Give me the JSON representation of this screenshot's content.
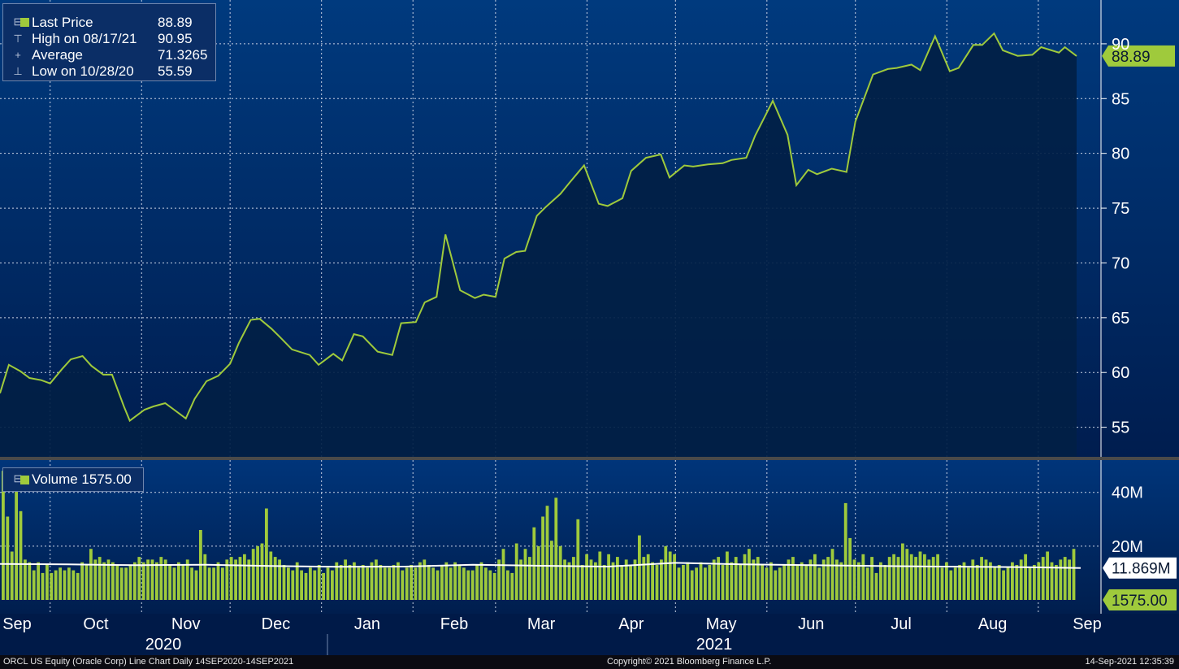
{
  "legend": {
    "last_price_label": "Last Price",
    "last_price_value": "88.89",
    "high_label": "High on 08/17/21",
    "high_value": "90.95",
    "average_label": "Average",
    "average_value": "71.3265",
    "low_label": "Low on 10/28/20",
    "low_value": "55.59"
  },
  "volume_legend": {
    "label": "Volume 1575.00"
  },
  "footer": {
    "left": "ORCL US Equity (Oracle Corp) Line Chart  Daily 14SEP2020-14SEP2021",
    "center": "Copyright© 2021 Bloomberg Finance L.P.",
    "right": "14-Sep-2021 12:35:39"
  },
  "colors": {
    "background": "#002a66",
    "line": "#9fca3c",
    "area": "#011f45",
    "volume_bar": "#9fca3c",
    "moving_average": "#ffffff"
  },
  "chart_data": [
    {
      "type": "line",
      "title": "ORCL US Equity (Oracle Corp) Line Chart",
      "y_ticks": [
        55,
        60,
        65,
        70,
        75,
        80,
        85,
        90
      ],
      "ylim": [
        52.3,
        94.0
      ],
      "last_label": "88.89",
      "x_months": [
        "Sep",
        "Oct",
        "Nov",
        "Dec",
        "Jan",
        "Feb",
        "Mar",
        "Apr",
        "May",
        "Jun",
        "Jul",
        "Aug",
        "Sep"
      ],
      "x_years": [
        "2020",
        "2021"
      ],
      "series": [
        {
          "name": "Last Price",
          "x": [
            "2020-09-14",
            "2020-09-17",
            "2020-09-21",
            "2020-09-24",
            "2020-09-28",
            "2020-10-01",
            "2020-10-05",
            "2020-10-08",
            "2020-10-12",
            "2020-10-15",
            "2020-10-19",
            "2020-10-22",
            "2020-10-26",
            "2020-10-28",
            "2020-11-02",
            "2020-11-05",
            "2020-11-09",
            "2020-11-12",
            "2020-11-16",
            "2020-11-19",
            "2020-11-23",
            "2020-11-27",
            "2020-12-01",
            "2020-12-04",
            "2020-12-08",
            "2020-12-11",
            "2020-12-15",
            "2020-12-18",
            "2020-12-22",
            "2020-12-28",
            "2020-12-31",
            "2021-01-05",
            "2021-01-08",
            "2021-01-12",
            "2021-01-15",
            "2021-01-20",
            "2021-01-25",
            "2021-01-28",
            "2021-02-02",
            "2021-02-05",
            "2021-02-09",
            "2021-02-12",
            "2021-02-17",
            "2021-02-22",
            "2021-02-25",
            "2021-03-01",
            "2021-03-04",
            "2021-03-08",
            "2021-03-11",
            "2021-03-15",
            "2021-03-18",
            "2021-03-23",
            "2021-03-26",
            "2021-03-31",
            "2021-04-05",
            "2021-04-08",
            "2021-04-13",
            "2021-04-16",
            "2021-04-21",
            "2021-04-26",
            "2021-04-29",
            "2021-05-04",
            "2021-05-07",
            "2021-05-12",
            "2021-05-17",
            "2021-05-20",
            "2021-05-25",
            "2021-05-28",
            "2021-06-03",
            "2021-06-08",
            "2021-06-11",
            "2021-06-15",
            "2021-06-18",
            "2021-06-23",
            "2021-06-28",
            "2021-07-01",
            "2021-07-07",
            "2021-07-12",
            "2021-07-15",
            "2021-07-20",
            "2021-07-23",
            "2021-07-28",
            "2021-08-02",
            "2021-08-05",
            "2021-08-10",
            "2021-08-13",
            "2021-08-17",
            "2021-08-20",
            "2021-08-25",
            "2021-08-30",
            "2021-09-02",
            "2021-09-08",
            "2021-09-10",
            "2021-09-14"
          ],
          "values": [
            58.1,
            60.7,
            60.1,
            59.5,
            59.3,
            59.0,
            60.3,
            61.2,
            61.5,
            60.6,
            59.8,
            59.8,
            56.9,
            55.6,
            56.6,
            56.9,
            57.2,
            56.6,
            55.8,
            57.6,
            59.2,
            59.7,
            60.8,
            62.7,
            64.8,
            64.9,
            64.0,
            63.2,
            62.1,
            61.6,
            60.7,
            61.7,
            61.1,
            63.5,
            63.3,
            61.9,
            61.6,
            64.5,
            64.6,
            66.4,
            66.9,
            72.6,
            67.5,
            66.8,
            67.1,
            66.9,
            70.4,
            71.0,
            71.1,
            74.3,
            75.1,
            76.3,
            77.3,
            78.9,
            75.4,
            75.2,
            75.9,
            78.4,
            79.6,
            79.9,
            77.8,
            78.9,
            78.8,
            79.0,
            79.1,
            79.4,
            79.6,
            81.6,
            84.8,
            81.7,
            77.1,
            78.5,
            78.1,
            78.6,
            78.3,
            82.9,
            87.2,
            87.7,
            87.8,
            88.1,
            87.6,
            90.7,
            87.5,
            87.8,
            89.9,
            89.9,
            90.95,
            89.4,
            88.9,
            89.0,
            89.7,
            89.2,
            89.7,
            88.89
          ]
        }
      ]
    },
    {
      "type": "bar",
      "title": "Volume",
      "y_ticks": [
        "20M",
        "40M"
      ],
      "ylim": [
        0,
        52000000
      ],
      "last_labels": [
        "11.869M",
        "1575.00"
      ],
      "series": [
        {
          "name": "Volume",
          "values": [
            48,
            31,
            18,
            42,
            33,
            15,
            14,
            11,
            14,
            10,
            13,
            10,
            11,
            12,
            11,
            12,
            11,
            10,
            14,
            13,
            19,
            15,
            16,
            14,
            15,
            14,
            13,
            12,
            12,
            13,
            14,
            16,
            14,
            15,
            15,
            14,
            16,
            15,
            13,
            12,
            14,
            13,
            15,
            12,
            11,
            26,
            17,
            12,
            12,
            14,
            12,
            15,
            16,
            15,
            16,
            17,
            15,
            19,
            20,
            21,
            34,
            18,
            16,
            15,
            13,
            12,
            11,
            14,
            11,
            10,
            12,
            11,
            13,
            10,
            12,
            11,
            14,
            13,
            15,
            13,
            14,
            12,
            13,
            12,
            14,
            15,
            13,
            12,
            12,
            13,
            14,
            11,
            12,
            13,
            12,
            14,
            15,
            13,
            12,
            11,
            13,
            14,
            12,
            14,
            13,
            12,
            11,
            11,
            13,
            14,
            12,
            11,
            10,
            15,
            19,
            11,
            10,
            21,
            15,
            19,
            16,
            27,
            20,
            31,
            35,
            22,
            38,
            20,
            15,
            14,
            16,
            30,
            13,
            17,
            15,
            14,
            18,
            13,
            17,
            14,
            16,
            13,
            15,
            13,
            15,
            24,
            16,
            17,
            14,
            13,
            15,
            20,
            18,
            17,
            12,
            13,
            14,
            11,
            12,
            14,
            12,
            13,
            15,
            16,
            13,
            18,
            14,
            16,
            13,
            17,
            19,
            15,
            16,
            13,
            12,
            14,
            11,
            12,
            13,
            15,
            16,
            13,
            14,
            13,
            15,
            17,
            12,
            15,
            16,
            19,
            15,
            14,
            36,
            23,
            15,
            14,
            17,
            12,
            16,
            10,
            14,
            13,
            16,
            17,
            16,
            21,
            19,
            17,
            16,
            18,
            17,
            15,
            16,
            17,
            12,
            14,
            11,
            12,
            13,
            14,
            12,
            15,
            13,
            16,
            15,
            14,
            12,
            13,
            11,
            12,
            14,
            13,
            15,
            17,
            12,
            13,
            14,
            16,
            18,
            14,
            13,
            15,
            16,
            15,
            19
          ]
        },
        {
          "name": "Moving Average",
          "values": [
            13.4,
            13.2,
            12.9,
            13.1,
            12.6,
            12.3,
            12.4,
            13.1,
            12.7,
            12.4,
            13.8,
            13.2,
            12.9,
            12.6,
            12.4,
            12.2,
            11.869
          ]
        }
      ]
    }
  ]
}
